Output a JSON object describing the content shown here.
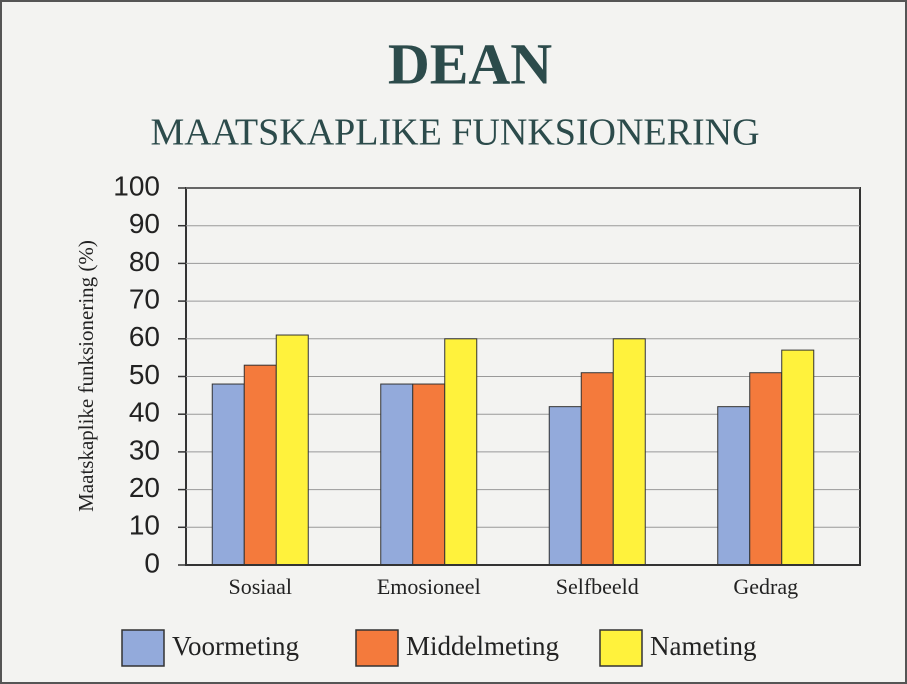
{
  "chart_data": {
    "type": "bar",
    "title": "DEAN",
    "subtitle": "MAATSKAPLIKE FUNKSIONERING",
    "y_label": "Maatskaplike funksionering (%)",
    "categories": [
      "Sosiaal",
      "Emosioneel",
      "Selfbeeld",
      "Gedrag"
    ],
    "series": [
      {
        "name": "Voormeting",
        "color": "#93aadb",
        "values": [
          48,
          48,
          42,
          42
        ]
      },
      {
        "name": "Middelmeting",
        "color": "#f47a3c",
        "values": [
          53,
          48,
          51,
          51
        ]
      },
      {
        "name": "Nameting",
        "color": "#fff23c",
        "values": [
          61,
          60,
          60,
          57
        ]
      }
    ],
    "ylim": [
      0,
      100
    ],
    "yticks": [
      0,
      10,
      20,
      30,
      40,
      50,
      60,
      70,
      80,
      90,
      100
    ],
    "grid": true,
    "legend": "bottom"
  }
}
